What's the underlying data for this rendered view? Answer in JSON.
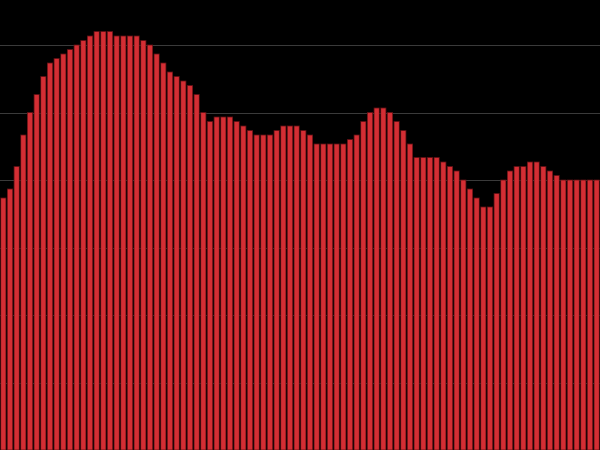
{
  "colors": {
    "background": "#000000",
    "bar_fill": "#d42e34",
    "bar_edge": "#5e1013",
    "grid": "#3a3a3a"
  },
  "chart_data": {
    "type": "bar",
    "title": "",
    "xlabel": "",
    "ylabel": "",
    "grid": true,
    "ylim": [
      0,
      100
    ],
    "yticks": [
      0,
      15,
      30,
      45,
      60,
      75,
      90
    ],
    "values": [
      56,
      58,
      63,
      70,
      75,
      79,
      83,
      86,
      87,
      88,
      89,
      90,
      91,
      92,
      93,
      93,
      93,
      92,
      92,
      92,
      92,
      91,
      90,
      88,
      86,
      84,
      83,
      82,
      81,
      79,
      75,
      73,
      74,
      74,
      74,
      73,
      72,
      71,
      70,
      70,
      70,
      71,
      72,
      72,
      72,
      71,
      70,
      68,
      68,
      68,
      68,
      68,
      69,
      70,
      73,
      75,
      76,
      76,
      75,
      73,
      71,
      68,
      65,
      65,
      65,
      65,
      64,
      63,
      62,
      60,
      58,
      56,
      54,
      54,
      57,
      60,
      62,
      63,
      63,
      64,
      64,
      63,
      62,
      61,
      60,
      60,
      60,
      60,
      60,
      60
    ]
  }
}
